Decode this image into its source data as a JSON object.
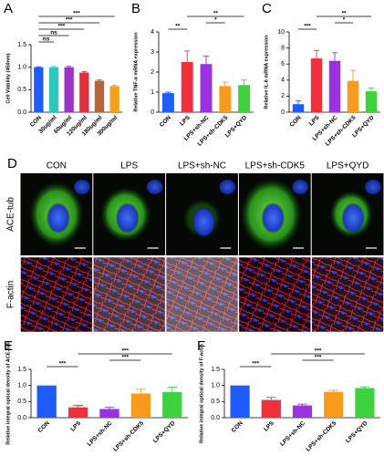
{
  "chart_data": [
    {
      "type": "bar",
      "label": "A",
      "ylabel": "Cell Viability (450nm)",
      "categories": [
        "CON",
        "30ug/ml",
        "60ug/ml",
        "120ug/ml",
        "180ug/ml",
        "300ug/ml"
      ],
      "values": [
        1.0,
        1.0,
        1.0,
        0.88,
        0.7,
        0.58
      ],
      "errors": [
        0.01,
        0.02,
        0.02,
        0.02,
        0.02,
        0.02
      ],
      "colors": [
        "#1f5cff",
        "#2fc6c2",
        "#9b32c8",
        "#e0303b",
        "#b3663b",
        "#f2a21a"
      ],
      "ylim": [
        0,
        1.5
      ],
      "yticks": [
        {
          "value": 0,
          "label": "0.0"
        },
        {
          "value": 0.5,
          "label": "0.5"
        },
        {
          "value": 1.0,
          "label": "1.0"
        },
        {
          "value": 1.5,
          "label": "1.5"
        }
      ],
      "significance": [
        {
          "label": "ns",
          "between": [
            "CON",
            "30ug/ml"
          ]
        },
        {
          "label": "ns",
          "between": [
            "CON",
            "60ug/ml"
          ]
        },
        {
          "label": "***",
          "between": [
            "CON",
            "120ug/ml"
          ]
        },
        {
          "label": "***",
          "between": [
            "CON",
            "180ug/ml"
          ]
        },
        {
          "label": "***",
          "between": [
            "CON",
            "300ug/ml"
          ]
        }
      ]
    },
    {
      "type": "bar",
      "label": "B",
      "ylabel": "Relative TNF-α mRNA expression",
      "categories": [
        "CON",
        "LPS",
        "LPS+sh-NC",
        "LPS+sh-CDK5",
        "LPS+QYD"
      ],
      "values": [
        0.95,
        2.5,
        2.4,
        1.3,
        1.35
      ],
      "errors": [
        0.05,
        0.55,
        0.4,
        0.2,
        0.25
      ],
      "colors": [
        "#1f5cff",
        "#f2303b",
        "#9b32e0",
        "#f79a1e",
        "#3fd23f"
      ],
      "ylim": [
        0,
        4
      ],
      "yticks": [
        0,
        1,
        2,
        3,
        4
      ],
      "significance": [
        {
          "label": "**",
          "between": [
            "CON",
            "LPS"
          ]
        },
        {
          "label": "*",
          "between": [
            "LPS+sh-NC",
            "LPS+sh-CDK5"
          ]
        },
        {
          "label": "**",
          "between": [
            "LPS",
            "LPS+QYD"
          ]
        }
      ]
    },
    {
      "type": "bar",
      "label": "C",
      "ylabel": "Relative IL-6 mRNA expression",
      "categories": [
        "CON",
        "LPS",
        "LPS+sh-NC",
        "LPS+sh-CDK5",
        "LPS+QYD"
      ],
      "values": [
        1.0,
        6.7,
        6.4,
        3.9,
        2.6
      ],
      "errors": [
        0.4,
        1.0,
        1.0,
        1.3,
        0.4
      ],
      "colors": [
        "#1f5cff",
        "#f2303b",
        "#9b32e0",
        "#f79a1e",
        "#3fd23f"
      ],
      "ylim": [
        0,
        10
      ],
      "yticks": [
        0,
        2,
        4,
        6,
        8,
        10
      ],
      "significance": [
        {
          "label": "***",
          "between": [
            "CON",
            "LPS"
          ]
        },
        {
          "label": "*",
          "between": [
            "LPS+sh-NC",
            "LPS+sh-CDK5"
          ]
        },
        {
          "label": "**",
          "between": [
            "LPS",
            "LPS+QYD"
          ]
        }
      ]
    },
    {
      "type": "bar",
      "label": "E",
      "ylabel": "Relative integral optical density of ACE-tub",
      "categories": [
        "CON",
        "LPS",
        "LPS+sh-NC",
        "LPS+sh-CDK5",
        "LPS+QYD"
      ],
      "values": [
        1.0,
        0.32,
        0.27,
        0.75,
        0.8
      ],
      "errors": [
        0,
        0.06,
        0.05,
        0.13,
        0.15
      ],
      "colors": [
        "#1f5cff",
        "#f2303b",
        "#9b32e0",
        "#f79a1e",
        "#3fd23f"
      ],
      "ylim": [
        0,
        1.5
      ],
      "yticks": [
        {
          "value": 0,
          "label": "0.0"
        },
        {
          "value": 0.5,
          "label": "0.5"
        },
        {
          "value": 1.0,
          "label": "1.0"
        },
        {
          "value": 1.5,
          "label": "1.5"
        }
      ],
      "significance": [
        {
          "label": "***",
          "between": [
            "CON",
            "LPS"
          ]
        },
        {
          "label": "***",
          "between": [
            "LPS+sh-NC",
            "LPS+sh-CDK5"
          ]
        },
        {
          "label": "***",
          "between": [
            "LPS",
            "LPS+QYD"
          ]
        }
      ]
    },
    {
      "type": "bar",
      "label": "F",
      "ylabel": "Relative integral optical density of F-actin",
      "categories": [
        "CON",
        "LPS",
        "LPS+sh-NC",
        "LPS+sh-CDK5",
        "LPS+QYD"
      ],
      "values": [
        1.0,
        0.55,
        0.38,
        0.8,
        0.92
      ],
      "errors": [
        0,
        0.08,
        0.04,
        0.05,
        0.04
      ],
      "colors": [
        "#1f5cff",
        "#f2303b",
        "#9b32e0",
        "#f79a1e",
        "#3fd23f"
      ],
      "ylim": [
        0,
        1.5
      ],
      "yticks": [
        {
          "value": 0,
          "label": "0.0"
        },
        {
          "value": 0.5,
          "label": "0.5"
        },
        {
          "value": 1.0,
          "label": "1.0"
        },
        {
          "value": 1.5,
          "label": "1.5"
        }
      ],
      "significance": [
        {
          "label": "***",
          "between": [
            "CON",
            "LPS"
          ]
        },
        {
          "label": "***",
          "between": [
            "LPS+sh-NC",
            "LPS+sh-CDK5"
          ]
        },
        {
          "label": "***",
          "between": [
            "LPS",
            "LPS+QYD"
          ]
        }
      ]
    }
  ],
  "panel_d": {
    "label": "D",
    "columns": [
      "CON",
      "LPS",
      "LPS+sh-NC",
      "LPS+sh-CDK5",
      "LPS+QYD"
    ],
    "rows": [
      "ACE-tub",
      "F-actin"
    ]
  }
}
